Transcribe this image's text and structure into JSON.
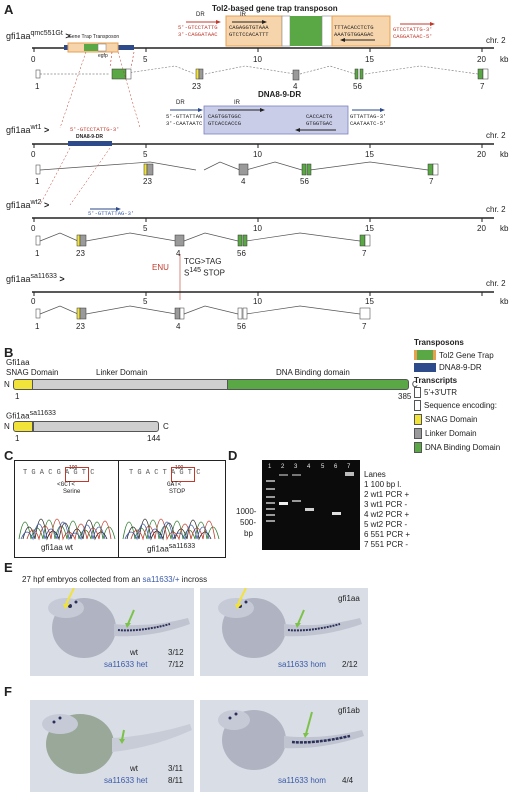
{
  "panel_a": {
    "letter": "A",
    "tol2_title": "Tol2-based gene trap transposon",
    "dr": "DR",
    "ir": "IR",
    "dna8_label": "DNA8-9-DR",
    "gt_label": "Gene Trap Transposon",
    "gt_sublabel": "egfp",
    "alleles": [
      {
        "gene": "gfi1aa",
        "sup": "qmc551Gt",
        "chr": "chr. 2"
      },
      {
        "gene": "gfi1aa",
        "sup": "wt1",
        "chr": "chr. 2"
      },
      {
        "gene": "gfi1aa",
        "sup": "wt2",
        "chr": "chr. 2"
      },
      {
        "gene": "gfi1aa",
        "sup": "sa11633",
        "chr": "chr. 2"
      }
    ],
    "scale_ticks": [
      "0",
      "5",
      "10",
      "15",
      "20"
    ],
    "scale_unit": "kb",
    "exon_labels": [
      "1",
      "23",
      "4",
      "56",
      "7"
    ],
    "seq1_top": "5'-GTCCTATTG",
    "seq1_bot": "3'-CAGGATAAC",
    "seq1_ir_top": "CAGAGGTGTAAA",
    "seq1_ir_bot": "GTCTCCACATTT",
    "seq1_r_top": "TTTACACCTCTG",
    "seq1_r_bot": "AAATGTGGAGAC",
    "seq1_end_top": "GTCCTATTG-3'",
    "seq1_end_bot": "CAGGATAAC-5'",
    "seq_wt1": "5'-GTCCTATTG-3'",
    "seq2_top": "5'-GTTATTAG",
    "seq2_bot": "3'-CAATAATC",
    "seq2_ir_top": "CAGTGGTGGC",
    "seq2_ir_bot": "GTCACCACCG",
    "seq2_r_top": "CACCACTG",
    "seq2_r_bot": "GTGGTGAC",
    "seq2_end_top": "GTTATTAG-3'",
    "seq2_end_bot": "CAATAATC-5'",
    "seq_wt2": "5'-GTTATTAG-3'",
    "enu": "ENU",
    "mutation": "TCG>TAG",
    "mutation_sup": "145",
    "stop_prefix": "S",
    "stop_suffix": "STOP"
  },
  "legend": {
    "transposons_title": "Transposons",
    "tol2": "Tol2 Gene Trap",
    "dna8": "DNA8-9-DR",
    "transcripts_title": "Transcripts",
    "utr": "5'+3'UTR",
    "seq_enc": "Sequence encoding:",
    "snag": "SNAG Domain",
    "linker": "Linker Domain",
    "dbd": "DNA Binding Domain"
  },
  "panel_b": {
    "letter": "B",
    "protein1": "Gfi1aa",
    "snag": "SNAG Domain",
    "linker": "Linker Domain",
    "dbd": "DNA Binding domain",
    "n": "N",
    "c": "C",
    "start": "1",
    "end1": "385",
    "protein2": "Gfi1aa",
    "protein2_sup": "sa11633",
    "end2": "144"
  },
  "panel_c": {
    "letter": "C",
    "wt_seq": "T G A C G A G T C",
    "wt_codon": "<GCT<",
    "wt_aa": "Serine",
    "mut_seq": "T G A C T A G T C",
    "mut_codon": "GAT<",
    "mut_aa": "STOP",
    "wt_label": "gfi1aa wt",
    "mut_label": "gfi1aa",
    "mut_label_sup": "sa11633",
    "peak_label": "100"
  },
  "panel_d": {
    "letter": "D",
    "lane_numbers": [
      "1",
      "2",
      "3",
      "4",
      "5",
      "6",
      "7"
    ],
    "marker1": "1000-",
    "marker2": "500-",
    "marker_unit": "bp",
    "lanes_title": "Lanes",
    "lanes": [
      "1 100 bp l.",
      "2 wt1 PCR +",
      "3 wt1 PCR -",
      "4 wt2 PCR +",
      "5 wt2 PCR -",
      "6 551 PCR +",
      "7 551 PCR -"
    ]
  },
  "panel_e": {
    "letter": "E",
    "title_prefix": "27 hpf embryos collected from an ",
    "title_cross": "sa11633/+",
    "title_suffix": " incross",
    "gene": "gfi1aa",
    "left_wt": "wt",
    "left_wt_count": "3/12",
    "left_het": "sa11633 het",
    "left_het_count": "7/12",
    "right_hom": "sa11633 hom",
    "right_hom_count": "2/12"
  },
  "panel_f": {
    "letter": "F",
    "gene": "gfi1ab",
    "left_wt": "wt",
    "left_wt_count": "3/11",
    "left_het": "sa11633 het",
    "left_het_count": "8/11",
    "right_hom": "sa11633 hom",
    "right_hom_count": "4/4"
  },
  "colors": {
    "tol2_orange": "#e8a050",
    "tol2_box": "#f6d5ad",
    "dna8_blue": "#2d4a8a",
    "dna8_box": "#c9cde8",
    "exon_green": "#5aa845",
    "exon_gray": "#9a9a9a",
    "snag_yellow": "#f2e33b",
    "linker_gray": "#cfcfcf",
    "seq_red": "#c0392b"
  }
}
